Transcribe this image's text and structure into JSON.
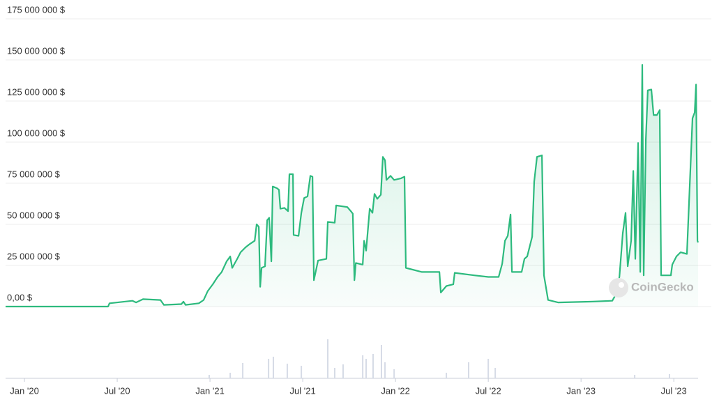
{
  "watermark": "CoinGecko",
  "chart_data": [
    {
      "type": "line",
      "color": "#2dba7e",
      "grid": true,
      "xlim": [
        -1.22,
        43.57
      ],
      "xticks": [
        {
          "value": 0,
          "label": "Jan '20"
        },
        {
          "value": 6,
          "label": "Jul '20"
        },
        {
          "value": 12,
          "label": "Jan '21"
        },
        {
          "value": 18,
          "label": "Jul '21"
        },
        {
          "value": 24,
          "label": "Jan '22"
        },
        {
          "value": 30,
          "label": "Jul '22"
        },
        {
          "value": 36,
          "label": "Jan '23"
        },
        {
          "value": 42,
          "label": "Jul '23"
        }
      ],
      "ylim": [
        0,
        175000000
      ],
      "yticks": [
        {
          "value": 0,
          "label": "0,00 $"
        },
        {
          "value": 25000000,
          "label": "25 000 000 $"
        },
        {
          "value": 50000000,
          "label": "50 000 000 $"
        },
        {
          "value": 75000000,
          "label": "75 000 000 $"
        },
        {
          "value": 100000000,
          "label": "100 000 000 $"
        },
        {
          "value": 125000000,
          "label": "125 000 000 $"
        },
        {
          "value": 150000000,
          "label": "150 000 000 $"
        },
        {
          "value": 175000000,
          "label": "175 000 000 $"
        }
      ],
      "x": [
        -1.22,
        5.41,
        5.5,
        6.99,
        7.22,
        7.67,
        8.8,
        9.02,
        10.15,
        10.28,
        10.42,
        11.28,
        11.59,
        11.86,
        12.18,
        12.49,
        12.76,
        13.08,
        13.31,
        13.44,
        13.76,
        13.98,
        14.3,
        14.57,
        14.89,
        15.02,
        15.16,
        15.25,
        15.34,
        15.56,
        15.7,
        15.83,
        15.97,
        16.06,
        16.33,
        16.46,
        16.55,
        16.82,
        17.05,
        17.14,
        17.37,
        17.41,
        17.73,
        17.91,
        18.09,
        18.31,
        18.49,
        18.63,
        18.72,
        18.99,
        19.53,
        19.62,
        20.07,
        20.16,
        20.88,
        21.11,
        21.24,
        21.34,
        21.43,
        21.88,
        21.97,
        22.1,
        22.33,
        22.51,
        22.64,
        22.82,
        23.05,
        23.18,
        23.32,
        23.41,
        23.68,
        23.91,
        24.36,
        24.58,
        24.67,
        25.71,
        26.61,
        26.84,
        26.93,
        27.29,
        27.74,
        27.83,
        29.09,
        30.0,
        30.67,
        30.9,
        31.08,
        31.26,
        31.44,
        31.53,
        32.16,
        32.34,
        32.52,
        32.84,
        32.97,
        33.15,
        33.47,
        33.6,
        33.87,
        34.51,
        36.76,
        38.02,
        38.2,
        38.48,
        38.7,
        38.88,
        39.02,
        39.24,
        39.38,
        39.51,
        39.69,
        39.83,
        39.96,
        40.05,
        40.19,
        40.32,
        40.55,
        40.69,
        40.91,
        41.09,
        41.18,
        41.81,
        41.9,
        42.17,
        42.44,
        42.85,
        43.21,
        43.35,
        43.44,
        43.53,
        43.57
      ],
      "values": [
        0,
        0,
        2000000,
        3500000,
        2500000,
        4500000,
        4000000,
        1000000,
        1500000,
        3000000,
        1000000,
        2000000,
        4000000,
        9500000,
        13500000,
        18000000,
        21000000,
        27500000,
        30500000,
        23500000,
        29000000,
        33000000,
        36000000,
        38000000,
        40000000,
        50000000,
        48500000,
        12000000,
        23500000,
        24500000,
        52500000,
        54000000,
        27500000,
        73000000,
        72000000,
        71000000,
        59500000,
        60000000,
        58000000,
        80500000,
        80500000,
        43500000,
        43000000,
        57000000,
        66000000,
        67000000,
        79500000,
        79000000,
        16000000,
        28000000,
        29000000,
        51500000,
        51000000,
        61500000,
        60500000,
        58000000,
        56500000,
        16000000,
        26500000,
        25500000,
        40000000,
        34000000,
        59500000,
        57000000,
        68500000,
        65500000,
        68000000,
        91000000,
        89000000,
        77000000,
        79500000,
        77000000,
        78000000,
        79000000,
        23500000,
        21000000,
        21000000,
        21000000,
        8500000,
        12500000,
        13500000,
        20500000,
        19000000,
        18000000,
        18000000,
        26000000,
        40000000,
        43000000,
        56000000,
        21000000,
        21000000,
        29000000,
        30500000,
        42500000,
        76000000,
        91000000,
        92000000,
        19000000,
        4000000,
        2500000,
        3000000,
        3500000,
        6500000,
        18000000,
        44500000,
        57000000,
        24500000,
        40000000,
        82500000,
        29000000,
        99500000,
        21000000,
        147000000,
        19000000,
        101500000,
        131500000,
        132000000,
        116500000,
        116500000,
        119500000,
        19000000,
        19000000,
        25500000,
        30500000,
        33000000,
        32000000,
        114500000,
        118000000,
        135000000,
        40000000,
        39000000
      ]
    },
    {
      "type": "bar",
      "color": "#d6dbe6",
      "xlim": [
        -1.22,
        43.57
      ],
      "ylim": [
        0,
        60
      ],
      "x": [
        11.95,
        13.31,
        14.12,
        15.79,
        16.1,
        17.0,
        17.91,
        19.62,
        20.07,
        20.61,
        21.88,
        22.1,
        22.55,
        23.09,
        23.32,
        23.91,
        27.29,
        28.73,
        30.0,
        30.45,
        39.47,
        41.72
      ],
      "values": [
        5,
        8,
        22,
        28,
        31,
        21,
        18,
        56,
        15,
        20,
        33,
        28,
        35,
        48,
        23,
        13,
        8,
        23,
        28,
        15,
        5,
        6
      ]
    }
  ]
}
